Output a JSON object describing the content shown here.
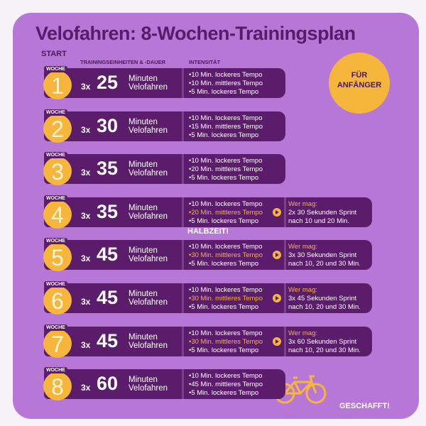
{
  "title": "Velofahren: 8-Wochen-Trainingsplan",
  "start": "START",
  "halfway": "HALBZEIT!",
  "finish": "GESCHAFFT!",
  "badge": [
    "FÜR",
    "ANFÄNGER"
  ],
  "column_headers": [
    "TRAININGSEINHEITEN & -DAUER",
    "INTENSITÄT"
  ],
  "highlight_color": "#f7b538",
  "weeks": [
    {
      "label": "WOCHE",
      "number": 1,
      "times": "3x",
      "minutes": 25,
      "unit": [
        "Minuten",
        "Velofahren"
      ],
      "intensity": [
        "10 Min. lockeres Tempo",
        "10 Min. mittleres Tempo",
        "5 Min. lockeres Tempo"
      ],
      "highlight": [
        false,
        false,
        false
      ]
    },
    {
      "label": "WOCHE",
      "number": 2,
      "times": "3x",
      "minutes": 30,
      "unit": [
        "Minuten",
        "Velofahren"
      ],
      "intensity": [
        "10 Min. lockeres Tempo",
        "15 Min. mittleres Tempo",
        "5 Min. lockeres Tempo"
      ],
      "highlight": [
        false,
        false,
        false
      ]
    },
    {
      "label": "WOCHE",
      "number": 3,
      "times": "3x",
      "minutes": 35,
      "unit": [
        "Minuten",
        "Velofahren"
      ],
      "intensity": [
        "10 Min. lockeres Tempo",
        "20 Min. mittleres Tempo",
        "5 Min. lockeres Tempo"
      ],
      "highlight": [
        false,
        false,
        false
      ]
    },
    {
      "label": "WOCHE",
      "number": 4,
      "times": "3x",
      "minutes": 35,
      "unit": [
        "Minuten",
        "Velofahren"
      ],
      "intensity": [
        "10 Min. lockeres Tempo",
        "20 Min. mittleres Tempo",
        "5 Min. lockeres Tempo"
      ],
      "highlight": [
        false,
        true,
        false
      ],
      "extra": [
        "Wer mag:",
        "2x 30 Sekunden Sprint",
        "nach 10 und 20 Min."
      ]
    },
    {
      "label": "WOCHE",
      "number": 5,
      "times": "3x",
      "minutes": 45,
      "unit": [
        "Minuten",
        "Velofahren"
      ],
      "intensity": [
        "10 Min. lockeres Tempo",
        "30 Min. mittleres Tempo",
        "5 Min. lockeres Tempo"
      ],
      "highlight": [
        false,
        true,
        false
      ],
      "extra": [
        "Wer mag:",
        "3x 30 Sekunden Sprint",
        "nach 10, 20 und 30 Min."
      ]
    },
    {
      "label": "WOCHE",
      "number": 6,
      "times": "3x",
      "minutes": 45,
      "unit": [
        "Minuten",
        "Velofahren"
      ],
      "intensity": [
        "10 Min. lockeres Tempo",
        "30 Min. mittleres Tempo",
        "5 Min. lockeres Tempo"
      ],
      "highlight": [
        false,
        true,
        false
      ],
      "extra": [
        "Wer mag:",
        "3x 45 Sekunden Sprint",
        "nach 10, 20 und 30 Min."
      ]
    },
    {
      "label": "WOCHE",
      "number": 7,
      "times": "3x",
      "minutes": 45,
      "unit": [
        "Minuten",
        "Velofahren"
      ],
      "intensity": [
        "10 Min. lockeres Tempo",
        "30 Min. mittleres Tempo",
        "5 Min. lockeres Tempo"
      ],
      "highlight": [
        false,
        true,
        false
      ],
      "extra": [
        "Wer mag:",
        "3x 60 Sekunden Sprint",
        "nach 10, 20 und 30 Min."
      ]
    },
    {
      "label": "WOCHE",
      "number": 8,
      "times": "3x",
      "minutes": 60,
      "unit": [
        "Minuten",
        "Velofahren"
      ],
      "intensity": [
        "10 Min. lockeres Tempo",
        "45 Min. mittleres Tempo",
        "5 Min. lockeres Tempo"
      ],
      "highlight": [
        false,
        false,
        false
      ]
    }
  ]
}
